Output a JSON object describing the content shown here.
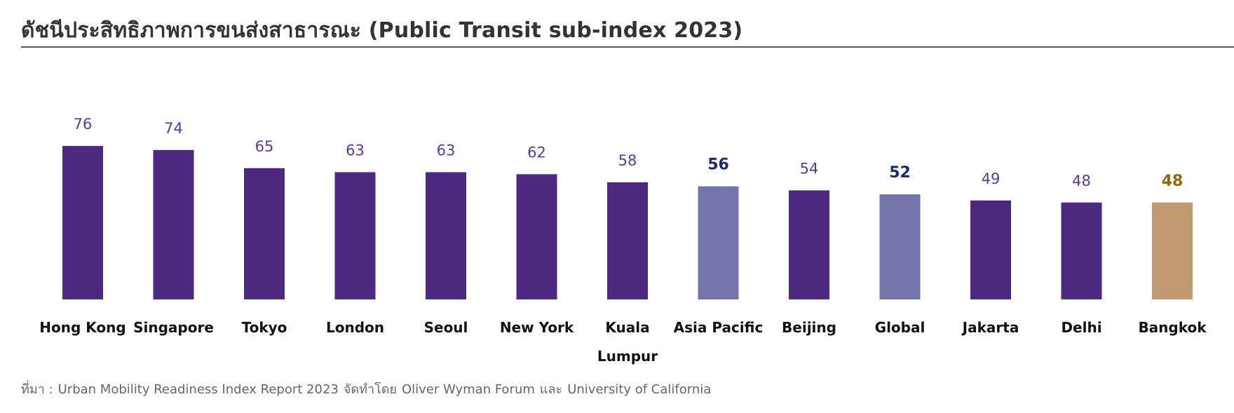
{
  "title": "ดัชนีประสิทธิภาพการขนส่งสาธารณะ (Public Transit sub-index 2023)",
  "source": {
    "prefix": "ที่มา :",
    "text": "Urban Mobility Readiness Index Report 2023",
    "made_by": "จัดทำโดย",
    "org1": "Oliver Wyman Forum",
    "and": "และ",
    "org2": "University of California"
  },
  "colors": {
    "city": "#4c2a7f",
    "benchmark": "#7375ad",
    "highlight": "#c29a72",
    "city_label": "#5b3a96",
    "benchmark_label": "#1a2a6c",
    "highlight_label": "#8a6a10",
    "axis_text": "#111111"
  },
  "chart_data": {
    "type": "bar",
    "categories": [
      "Hong Kong",
      "Singapore",
      "Tokyo",
      "London",
      "Seoul",
      "New York",
      "Kuala Lumpur",
      "Asia Pacific",
      "Beijing",
      "Global",
      "Jakarta",
      "Delhi",
      "Bangkok"
    ],
    "tick_labels": [
      [
        "Hong Kong"
      ],
      [
        "Singapore"
      ],
      [
        "Tokyo"
      ],
      [
        "London"
      ],
      [
        "Seoul"
      ],
      [
        "New York"
      ],
      [
        "Kuala",
        "Lumpur"
      ],
      [
        "Asia Pacific"
      ],
      [
        "Beijing"
      ],
      [
        "Global"
      ],
      [
        "Jakarta"
      ],
      [
        "Delhi"
      ],
      [
        "Bangkok"
      ]
    ],
    "values": [
      76,
      74,
      65,
      63,
      63,
      62,
      58,
      56,
      54,
      52,
      49,
      48,
      48
    ],
    "data_labels": [
      "76",
      "74",
      "65",
      "63",
      "63",
      "62",
      "58",
      "56",
      "54",
      "52",
      "49",
      "48",
      "48"
    ],
    "bar_kinds": [
      "city",
      "city",
      "city",
      "city",
      "city",
      "city",
      "city",
      "benchmark",
      "city",
      "benchmark",
      "city",
      "city",
      "highlight"
    ],
    "ylim": [
      0,
      80
    ],
    "grid": false,
    "legend": "none",
    "xlabel": "",
    "ylabel": ""
  }
}
